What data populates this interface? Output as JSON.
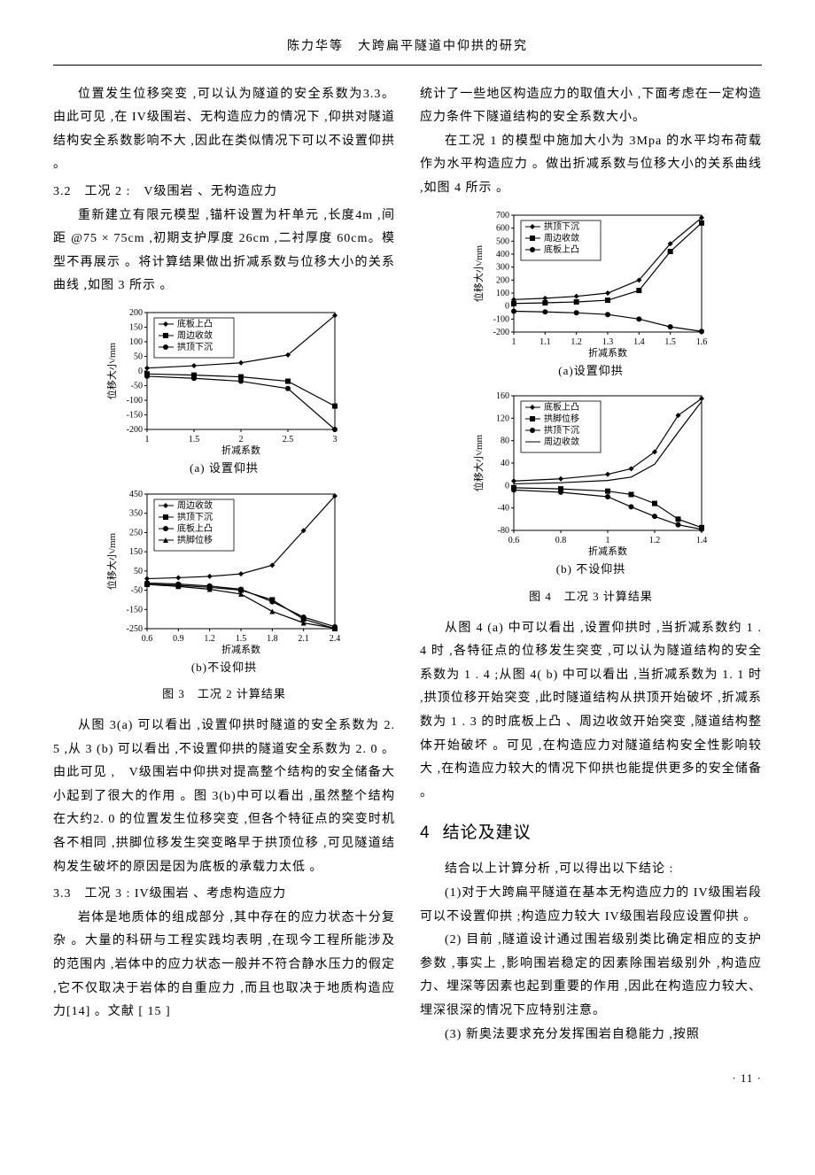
{
  "header": "陈力华等　大跨扁平隧道中仰拱的研究",
  "left": {
    "p1": "位置发生位移突变 ,可以认为隧道的安全系数为3.3。由此可见 ,在 IV级围岩、无构造应力的情况下 ,仰拱对隧道结构安全系数影响不大 ,因此在类似情况下可以不设置仰拱 。",
    "s32": "3.2　工况 2 :　V级围岩 、无构造应力",
    "p2": "重新建立有限元模型 ,锚杆设置为杆单元 ,长度4m ,间距 @75 × 75cm ,初期支护厚度 26cm ,二衬厚度 60cm。模型不再展示 。将计算结果做出折减系数与位移大小的关系曲线 ,如图 3 所示 。",
    "cap3a": "(a) 设置仰拱",
    "cap3b": "(b)不设仰拱",
    "cap3": "图 3　工况 2 计算结果",
    "p3": "从图 3(a) 可以看出 ,设置仰拱时隧道的安全系数为 2. 5 ,从 3 (b) 可以看出 ,不设置仰拱的隧道安全系数为 2. 0 。由此可见 ,　V级围岩中仰拱对提高整个结构的安全储备大小起到了很大的作用 。图 3(b)中可以看出 ,虽然整个结构在大约2. 0 的位置发生位移突变 ,但各个特征点的突变时机各不相同 ,拱脚位移发生突变略早于拱顶位移 ,可见隧道结构发生破坏的原因是因为底板的承载力太低 。",
    "s33": "3.3　工况 3 : IV级围岩 、考虑构造应力",
    "p4": "岩体是地质体的组成部分 ,其中存在的应力状态十分复杂 。大量的科研与工程实践均表明 ,在现今工程所能涉及的范围内 ,岩体中的应力状态一般并不符合静水压力的假定 ,它不仅取决于岩体的自重应力 ,而且也取决于地质构造应力[14] 。文献 [ 15 ]"
  },
  "right": {
    "p1": "统计了一些地区构造应力的取值大小 ,下面考虑在一定构造应力条件下隧道结构的安全系数大小。",
    "p2": "在工况 1 的模型中施加大小为 3Mpa 的水平均布荷载作为水平构造应力 。做出折减系数与位移大小的关系曲线 ,如图 4 所示 。",
    "cap4a": "(a)设置仰拱",
    "cap4b": "(b) 不设仰拱",
    "cap4": "图 4　工况 3 计算结果",
    "p3": "从图 4 (a) 中可以看出 ,设置仰拱时 ,当折减系数约 1 . 4 时 ,各特征点的位移发生突变 ,可以认为隧道结构的安全系数为 1 . 4 ;从图 4( b) 中可以看出 ,当折减系数为 1. 1 时 ,拱顶位移开始突变 ,此时隧道结构从拱顶开始破坏 ,折减系数为 1 . 3 的时底板上凸 、周边收敛开始突变 ,隧道结构整体开始破坏 。可见 ,在构造应力对隧道结构安全性影响较大 ,在构造应力较大的情况下仰拱也能提供更多的安全储备 。",
    "h2num": "4",
    "h2": "结论及建议",
    "p4": "结合以上计算分析 ,可以得出以下结论 :",
    "p5": "(1)对于大跨扁平隧道在基本无构造应力的 IV级围岩段可以不设置仰拱 ;构造应力较大 IV级围岩段应设置仰拱 。",
    "p6": "(2) 目前 ,隧道设计通过围岩级别类比确定相应的支护参数 ,事实上 ,影响围岩稳定的因素除围岩级别外 ,构造应力、埋深等因素也起到重要的作用 ,因此在构造应力较大、埋深很深的情况下应特别注意。",
    "p7": "(3) 新奥法要求充分发挥围岩自稳能力 ,按照"
  },
  "page": "· 11 ·",
  "chart3a": {
    "type": "line",
    "xlim": [
      1,
      3
    ],
    "xticks": [
      1,
      1.5,
      2,
      2.5,
      3
    ],
    "ylim": [
      -200,
      200
    ],
    "yticks": [
      -200,
      -150,
      -100,
      -50,
      0,
      50,
      100,
      150,
      200
    ],
    "xlabel": "折减系数",
    "ylabel": "位移大小/mm",
    "legend": [
      "底板上凸",
      "周边收敛",
      "拱顶下沉"
    ],
    "markers": [
      "diamond",
      "square",
      "circle"
    ],
    "series": [
      {
        "name": "底板上凸",
        "pts": [
          [
            1,
            10
          ],
          [
            1.5,
            18
          ],
          [
            2,
            28
          ],
          [
            2.5,
            55
          ],
          [
            3,
            190
          ]
        ]
      },
      {
        "name": "周边收敛",
        "pts": [
          [
            1,
            -10
          ],
          [
            1.5,
            -14
          ],
          [
            2,
            -20
          ],
          [
            2.5,
            -35
          ],
          [
            3,
            -120
          ]
        ]
      },
      {
        "name": "拱顶下沉",
        "pts": [
          [
            1,
            -18
          ],
          [
            1.5,
            -25
          ],
          [
            2,
            -35
          ],
          [
            2.5,
            -60
          ],
          [
            3,
            -200
          ]
        ]
      }
    ],
    "color": "#000000",
    "bg": "#ffffff"
  },
  "chart3b": {
    "type": "line",
    "xlim": [
      0.6,
      2.4
    ],
    "xticks": [
      0.6,
      0.9,
      1.2,
      1.5,
      1.8,
      2.1,
      2.4
    ],
    "ylim": [
      -250,
      450
    ],
    "yticks": [
      -250,
      -150,
      -50,
      50,
      150,
      250,
      350,
      450
    ],
    "xlabel": "折减系数",
    "ylabel": "位移大小/mm",
    "legend": [
      "周边收敛",
      "拱顶下沉",
      "底板上凸",
      "拱脚位移"
    ],
    "markers": [
      "diamond",
      "square",
      "circle",
      "triangle"
    ],
    "series": [
      {
        "name": "周边收敛",
        "pts": [
          [
            0.6,
            10
          ],
          [
            0.9,
            15
          ],
          [
            1.2,
            22
          ],
          [
            1.5,
            35
          ],
          [
            1.8,
            80
          ],
          [
            2.1,
            260
          ],
          [
            2.4,
            440
          ]
        ]
      },
      {
        "name": "拱顶下沉",
        "pts": [
          [
            0.6,
            -18
          ],
          [
            0.9,
            -25
          ],
          [
            1.2,
            -35
          ],
          [
            1.5,
            -50
          ],
          [
            1.8,
            -100
          ],
          [
            2.1,
            -200
          ],
          [
            2.4,
            -250
          ]
        ]
      },
      {
        "name": "底板上凸",
        "pts": [
          [
            0.6,
            -12
          ],
          [
            0.9,
            -18
          ],
          [
            1.2,
            -28
          ],
          [
            1.5,
            -45
          ],
          [
            1.8,
            -110
          ],
          [
            2.1,
            -190
          ],
          [
            2.4,
            -240
          ]
        ]
      },
      {
        "name": "拱脚位移",
        "pts": [
          [
            0.6,
            -20
          ],
          [
            0.9,
            -30
          ],
          [
            1.2,
            -45
          ],
          [
            1.5,
            -70
          ],
          [
            1.8,
            -160
          ],
          [
            2.1,
            -220
          ],
          [
            2.4,
            -248
          ]
        ]
      }
    ],
    "color": "#000000",
    "bg": "#ffffff"
  },
  "chart4a": {
    "type": "line",
    "xlim": [
      1,
      1.6
    ],
    "xticks": [
      1,
      1.1,
      1.2,
      1.3,
      1.4,
      1.5,
      1.6
    ],
    "ylim": [
      -200,
      700
    ],
    "yticks": [
      -200,
      -100,
      0,
      100,
      200,
      300,
      400,
      500,
      600,
      700
    ],
    "xlabel": "折减系数",
    "ylabel": "位移大小/mm",
    "legend": [
      "拱顶下沉",
      "周边收敛",
      "底板上凸"
    ],
    "markers": [
      "diamond",
      "square",
      "circle"
    ],
    "series": [
      {
        "name": "拱顶下沉",
        "pts": [
          [
            1,
            50
          ],
          [
            1.1,
            60
          ],
          [
            1.2,
            75
          ],
          [
            1.3,
            100
          ],
          [
            1.4,
            200
          ],
          [
            1.5,
            480
          ],
          [
            1.6,
            680
          ]
        ]
      },
      {
        "name": "周边收敛",
        "pts": [
          [
            1,
            20
          ],
          [
            1.1,
            25
          ],
          [
            1.2,
            32
          ],
          [
            1.3,
            45
          ],
          [
            1.4,
            120
          ],
          [
            1.5,
            420
          ],
          [
            1.6,
            640
          ]
        ]
      },
      {
        "name": "底板上凸",
        "pts": [
          [
            1,
            -40
          ],
          [
            1.1,
            -45
          ],
          [
            1.2,
            -52
          ],
          [
            1.3,
            -65
          ],
          [
            1.4,
            -100
          ],
          [
            1.5,
            -160
          ],
          [
            1.6,
            -195
          ]
        ]
      }
    ],
    "color": "#000000",
    "bg": "#ffffff"
  },
  "chart4b": {
    "type": "line",
    "xlim": [
      0.6,
      1.4
    ],
    "xticks": [
      0.6,
      0.8,
      1,
      1.2,
      1.4
    ],
    "ylim": [
      -80,
      160
    ],
    "yticks": [
      -80,
      -40,
      0,
      40,
      80,
      120,
      160
    ],
    "xlabel": "折减系数",
    "ylabel": "位移大小/mm",
    "legend": [
      "底板上凸",
      "拱脚位移",
      "拱顶下沉",
      "周边收敛"
    ],
    "markers": [
      "diamond",
      "square",
      "circle",
      "line"
    ],
    "series": [
      {
        "name": "底板上凸",
        "pts": [
          [
            0.6,
            8
          ],
          [
            0.8,
            12
          ],
          [
            1,
            20
          ],
          [
            1.1,
            30
          ],
          [
            1.2,
            60
          ],
          [
            1.3,
            125
          ],
          [
            1.4,
            155
          ]
        ]
      },
      {
        "name": "拱脚位移",
        "pts": [
          [
            0.6,
            -4
          ],
          [
            0.8,
            -6
          ],
          [
            1,
            -10
          ],
          [
            1.1,
            -16
          ],
          [
            1.2,
            -32
          ],
          [
            1.3,
            -60
          ],
          [
            1.4,
            -75
          ]
        ]
      },
      {
        "name": "拱顶下沉",
        "pts": [
          [
            0.6,
            -8
          ],
          [
            0.8,
            -12
          ],
          [
            1,
            -20
          ],
          [
            1.1,
            -38
          ],
          [
            1.2,
            -55
          ],
          [
            1.3,
            -70
          ],
          [
            1.4,
            -78
          ]
        ]
      },
      {
        "name": "周边收敛",
        "pts": [
          [
            0.6,
            3
          ],
          [
            0.8,
            5
          ],
          [
            1,
            9
          ],
          [
            1.1,
            15
          ],
          [
            1.2,
            38
          ],
          [
            1.3,
            95
          ],
          [
            1.4,
            150
          ]
        ]
      }
    ],
    "color": "#000000",
    "bg": "#ffffff"
  }
}
